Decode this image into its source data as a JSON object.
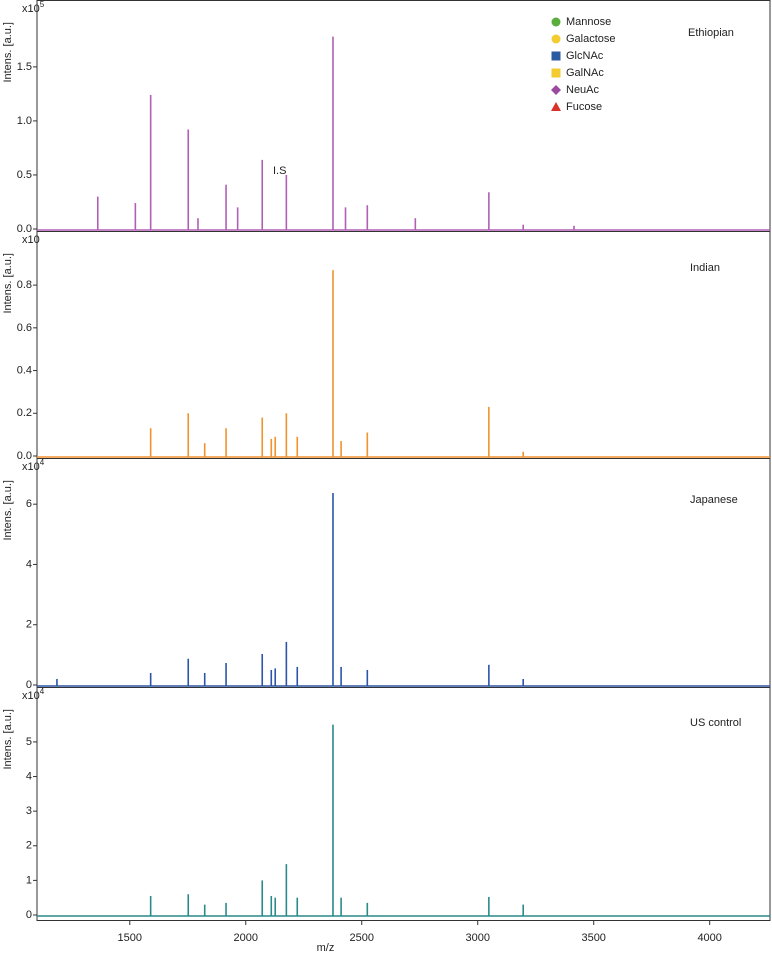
{
  "chart_data": [
    {
      "type": "stem",
      "title": "Ethiopian",
      "ylabel": "Intens. [a.u.]",
      "y_multiplier": {
        "base": "x10",
        "exp": "5"
      },
      "color": "#b05fb5",
      "xlim": [
        1100,
        4260
      ],
      "ylim": [
        0,
        2.1
      ],
      "yticks": [
        {
          "value": 0,
          "label": "0.0"
        },
        0.5,
        {
          "value": 1,
          "label": "1.0"
        },
        1.5
      ],
      "x": [
        1362,
        1524,
        1590,
        1752,
        1794,
        1915,
        1965,
        2071,
        2175,
        2376,
        2430,
        2524,
        2731,
        3048,
        3196,
        3415
      ],
      "values": [
        0.3,
        0.24,
        1.24,
        0.92,
        0.1,
        0.41,
        0.2,
        0.64,
        0.5,
        1.78,
        0.2,
        0.22,
        0.1,
        0.34,
        0.04,
        0.03
      ],
      "annotation": "I.S",
      "legend": [
        {
          "name": "Mannose",
          "color": "#5aae3c",
          "shape": "circle"
        },
        {
          "name": "Galactose",
          "color": "#f2cc30",
          "shape": "circle"
        },
        {
          "name": "GlcNAc",
          "color": "#2a5aa0",
          "shape": "square"
        },
        {
          "name": "GalNAc",
          "color": "#f2cc30",
          "shape": "square"
        },
        {
          "name": "NeuAc",
          "color": "#9a4aa0",
          "shape": "diamond"
        },
        {
          "name": "Fucose",
          "color": "#d8322a",
          "shape": "triangle"
        }
      ]
    },
    {
      "type": "stem",
      "title": "Indian",
      "ylabel": "Intens. [a.u.]",
      "y_multiplier": {
        "base": "x10"
      },
      "color": "#f0922e",
      "xlim": [
        1100,
        4260
      ],
      "ylim": [
        0,
        1.03
      ],
      "yticks": [
        {
          "value": 0,
          "label": "0.0"
        },
        0.2,
        0.4,
        0.6,
        0.8
      ],
      "x": [
        1590,
        1752,
        1823,
        1915,
        2071,
        2110,
        2127,
        2175,
        2222,
        2376,
        2411,
        2524,
        3048,
        3196
      ],
      "values": [
        0.13,
        0.2,
        0.06,
        0.13,
        0.18,
        0.08,
        0.09,
        0.2,
        0.09,
        0.87,
        0.07,
        0.11,
        0.23,
        0.02
      ]
    },
    {
      "type": "stem",
      "title": "Japanese",
      "ylabel": "Intens. [a.u.]",
      "y_multiplier": {
        "base": "x10",
        "exp": "4"
      },
      "color": "#2a55a8",
      "xlim": [
        1100,
        4260
      ],
      "ylim": [
        0,
        7.4
      ],
      "yticks": [
        0,
        2,
        4,
        6
      ],
      "x": [
        1186,
        1590,
        1752,
        1823,
        1915,
        2071,
        2110,
        2127,
        2175,
        2222,
        2376,
        2411,
        2524,
        3048,
        3196
      ],
      "values": [
        0.2,
        0.4,
        0.87,
        0.4,
        0.73,
        1.03,
        0.5,
        0.55,
        1.43,
        0.6,
        6.37,
        0.6,
        0.5,
        0.67,
        0.2
      ]
    },
    {
      "type": "stem",
      "title": "US control",
      "ylabel": "Intens. [a.u.]",
      "y_multiplier": {
        "base": "x10",
        "exp": "4"
      },
      "color": "#2a8a8a",
      "xlim": [
        1100,
        4260
      ],
      "ylim": [
        0,
        6.5
      ],
      "yticks": [
        0,
        1,
        2,
        3,
        4,
        5
      ],
      "x": [
        1590,
        1752,
        1823,
        1915,
        2071,
        2110,
        2127,
        2175,
        2222,
        2376,
        2411,
        2524,
        3048,
        3196
      ],
      "values": [
        0.55,
        0.6,
        0.3,
        0.35,
        1.0,
        0.55,
        0.5,
        1.47,
        0.5,
        5.5,
        0.5,
        0.35,
        0.52,
        0.3
      ],
      "xlabel": "m/z",
      "xticks": [
        1500,
        2000,
        2500,
        3000,
        3500,
        4000
      ]
    }
  ]
}
